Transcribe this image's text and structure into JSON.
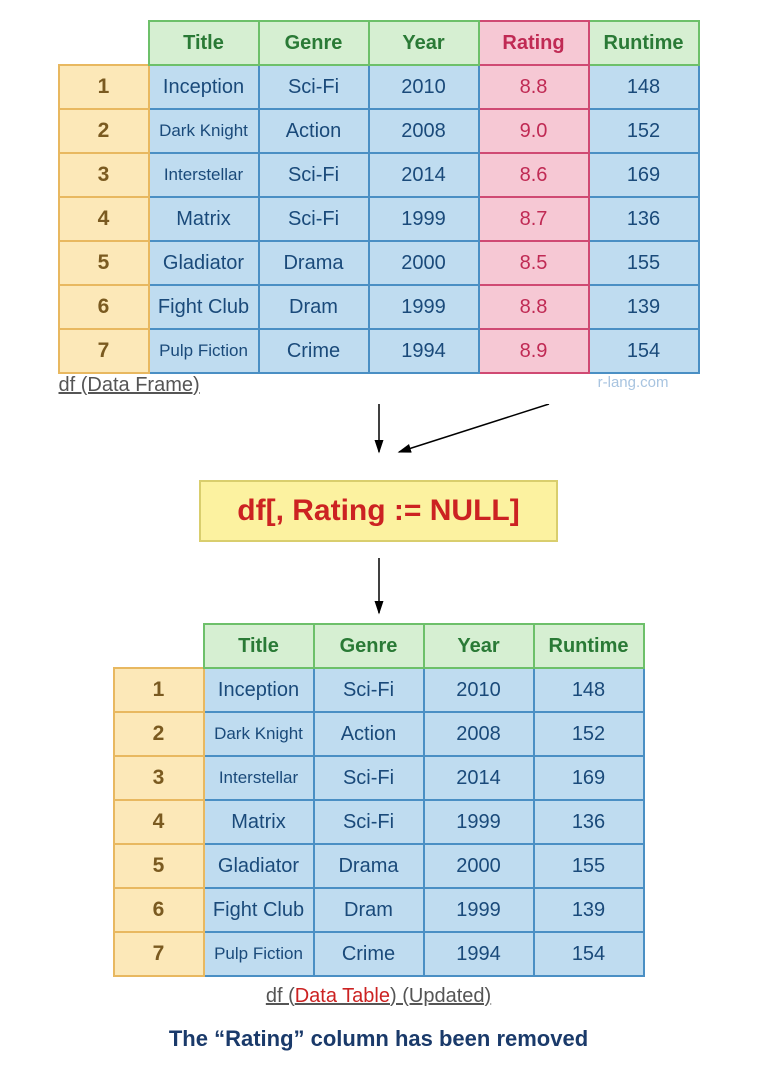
{
  "colors": {
    "header_bg": "#d6efd2",
    "header_border": "#6dc06a",
    "header_text": "#2a7a36",
    "index_bg": "#fce8b8",
    "index_border": "#e8b860",
    "index_text": "#7a5a20",
    "cell_bg": "#bfdcf0",
    "cell_border": "#4a8fc4",
    "cell_text": "#1a4a7a",
    "highlight_bg": "#f6c8d4",
    "highlight_border": "#d04a73",
    "highlight_text": "#c02a54",
    "code_bg": "#fcf2a0",
    "code_border": "#d9ce6d",
    "code_text": "#cc2222",
    "footer_text": "#1a3a6a"
  },
  "table_top": {
    "headers": [
      "Title",
      "Genre",
      "Year",
      "Rating",
      "Runtime"
    ],
    "highlight_col": 3,
    "rows": [
      {
        "idx": "1",
        "cells": [
          "Inception",
          "Sci-Fi",
          "2010",
          "8.8",
          "148"
        ],
        "small": []
      },
      {
        "idx": "2",
        "cells": [
          "Dark Knight",
          "Action",
          "2008",
          "9.0",
          "152"
        ],
        "small": [
          0
        ]
      },
      {
        "idx": "3",
        "cells": [
          "Interstellar",
          "Sci-Fi",
          "2014",
          "8.6",
          "169"
        ],
        "small": [
          0
        ]
      },
      {
        "idx": "4",
        "cells": [
          "Matrix",
          "Sci-Fi",
          "1999",
          "8.7",
          "136"
        ],
        "small": []
      },
      {
        "idx": "5",
        "cells": [
          "Gladiator",
          "Drama",
          "2000",
          "8.5",
          "155"
        ],
        "small": []
      },
      {
        "idx": "6",
        "cells": [
          "Fight Club",
          "Dram",
          "1999",
          "8.8",
          "139"
        ],
        "small": []
      },
      {
        "idx": "7",
        "cells": [
          "Pulp Fiction",
          "Crime",
          "1994",
          "8.9",
          "154"
        ],
        "small": [
          0
        ]
      }
    ]
  },
  "caption_top": "df (Data Frame)",
  "watermark": "r-lang.com",
  "code_expr": "df[, Rating := NULL]",
  "table_bottom": {
    "headers": [
      "Title",
      "Genre",
      "Year",
      "Runtime"
    ],
    "rows": [
      {
        "idx": "1",
        "cells": [
          "Inception",
          "Sci-Fi",
          "2010",
          "148"
        ],
        "small": []
      },
      {
        "idx": "2",
        "cells": [
          "Dark Knight",
          "Action",
          "2008",
          "152"
        ],
        "small": [
          0
        ]
      },
      {
        "idx": "3",
        "cells": [
          "Interstellar",
          "Sci-Fi",
          "2014",
          "169"
        ],
        "small": [
          0
        ]
      },
      {
        "idx": "4",
        "cells": [
          "Matrix",
          "Sci-Fi",
          "1999",
          "136"
        ],
        "small": []
      },
      {
        "idx": "5",
        "cells": [
          "Gladiator",
          "Drama",
          "2000",
          "155"
        ],
        "small": []
      },
      {
        "idx": "6",
        "cells": [
          "Fight Club",
          "Dram",
          "1999",
          "139"
        ],
        "small": []
      },
      {
        "idx": "7",
        "cells": [
          "Pulp Fiction",
          "Crime",
          "1994",
          "154"
        ],
        "small": [
          0
        ]
      }
    ]
  },
  "caption_bottom_pre": "df (",
  "caption_bottom_mid": "Data Table",
  "caption_bottom_post": ") (Updated)",
  "footer": "The “Rating” column has been removed"
}
